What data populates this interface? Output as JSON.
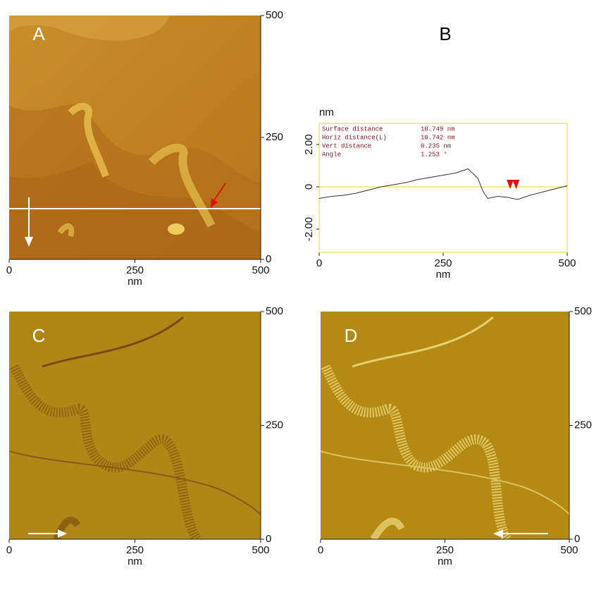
{
  "chart_data": [
    {
      "type": "image",
      "label": "A",
      "xlabel": "nm",
      "xlim": [
        0,
        500
      ],
      "xticks": [
        0,
        250,
        500
      ],
      "ylim": [
        0,
        500
      ],
      "yticks": [
        0,
        250,
        500
      ]
    },
    {
      "type": "line",
      "label": "B",
      "xlabel": "nm",
      "ylabel": "nm",
      "x": [
        0,
        25,
        50,
        75,
        100,
        125,
        150,
        175,
        200,
        225,
        250,
        275,
        300,
        320,
        330,
        340,
        360,
        380,
        400,
        425,
        450,
        475,
        500
      ],
      "values": [
        -0.55,
        -0.45,
        -0.4,
        -0.3,
        -0.15,
        0,
        0.1,
        0.2,
        0.35,
        0.45,
        0.55,
        0.65,
        0.85,
        0.4,
        -0.2,
        -0.55,
        -0.45,
        -0.5,
        -0.6,
        -0.4,
        -0.25,
        -0.1,
        0.05
      ],
      "color": "#333333",
      "cursor_x": [
        385,
        397
      ],
      "xlim": [
        0,
        500
      ],
      "xticks": [
        0,
        250,
        500
      ],
      "ylim": [
        -3.1,
        3.0
      ],
      "yticks": [
        {
          "value": -2,
          "label": "-2.00"
        },
        0,
        {
          "value": 2,
          "label": "2.00"
        }
      ],
      "annotations": [
        [
          "Surface distance",
          "10.749 nm"
        ],
        [
          "Horiz distance(L)",
          "10.742 nm"
        ],
        [
          "Vert distance",
          "0.235 nm"
        ],
        [
          "Angle",
          "1.253 °"
        ]
      ]
    },
    {
      "type": "image",
      "label": "C",
      "xlabel": "nm",
      "xlim": [
        0,
        500
      ],
      "xticks": [
        0,
        250,
        500
      ],
      "ylim": [
        0,
        500
      ],
      "yticks": [
        0,
        250,
        500
      ]
    },
    {
      "type": "image",
      "label": "D",
      "xlabel": "nm",
      "xlim": [
        0,
        500
      ],
      "xticks": [
        0,
        250,
        500
      ],
      "ylim": [
        0,
        500
      ],
      "yticks": [
        0,
        250,
        500
      ]
    }
  ]
}
